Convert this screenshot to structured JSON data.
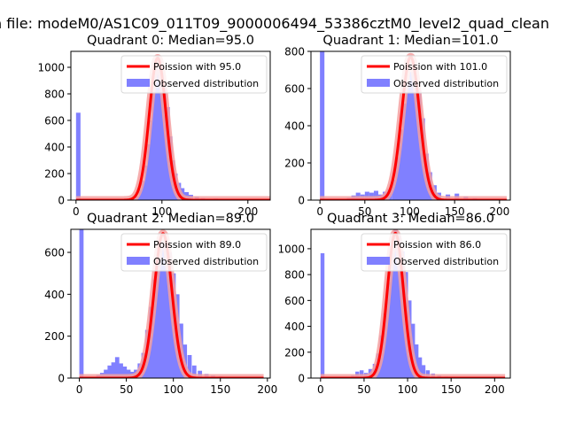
{
  "figure": {
    "suptitle": "n file: modeM0/AS1C09_011T09_9000006494_53386cztM0_level2_quad_clean"
  },
  "colors": {
    "hist": "#8080ff",
    "poisson": "#ff0000",
    "poisson_glow": "#f4a0a0",
    "axis": "#000000",
    "background": "#ffffff"
  },
  "chart_data": [
    {
      "type": "bar",
      "title": "Quadrant 0: Median=95.0",
      "median": 95.0,
      "xlim": [
        -6,
        226
      ],
      "ylim": [
        0,
        1120
      ],
      "xticks": [
        0,
        100,
        200
      ],
      "xtick_labels": [
        "0",
        "100",
        "200"
      ],
      "yticks": [
        0,
        200,
        400,
        600,
        800,
        1000
      ],
      "ytick_labels": [
        "0",
        "200",
        "400",
        "600",
        "800",
        "1000"
      ],
      "legend": {
        "position": "top-right",
        "entries": [
          "Poission with 95.0",
          "Observed distribution"
        ]
      },
      "series": [
        {
          "name": "Observed distribution",
          "kind": "histogram",
          "bin_width": 5.2,
          "bins": [
            [
              0,
              658
            ],
            [
              61,
              3
            ],
            [
              65,
              8
            ],
            [
              69,
              30
            ],
            [
              73,
              80
            ],
            [
              76,
              145
            ],
            [
              80,
              260
            ],
            [
              83,
              420
            ],
            [
              86,
              600
            ],
            [
              88,
              810
            ],
            [
              91,
              1010
            ],
            [
              94,
              990
            ],
            [
              97,
              960
            ],
            [
              100,
              860
            ],
            [
              104,
              700
            ],
            [
              107,
              480
            ],
            [
              110,
              300
            ],
            [
              113,
              200
            ],
            [
              117,
              130
            ],
            [
              121,
              90
            ],
            [
              126,
              60
            ],
            [
              131,
              40
            ],
            [
              138,
              25
            ],
            [
              145,
              15
            ],
            [
              152,
              10
            ],
            [
              160,
              12
            ],
            [
              168,
              8
            ],
            [
              176,
              5
            ],
            [
              185,
              4
            ],
            [
              195,
              3
            ],
            [
              205,
              2
            ]
          ]
        },
        {
          "name": "Poission with 95.0",
          "kind": "curve",
          "mean": 95.0,
          "peak": 1070,
          "xrange": [
            0,
            230
          ]
        }
      ]
    },
    {
      "type": "bar",
      "title": "Quadrant 1: Median=101.0",
      "median": 101.0,
      "xlim": [
        -10,
        212
      ],
      "ylim": [
        0,
        800
      ],
      "xticks": [
        0,
        50,
        100,
        150,
        200
      ],
      "xtick_labels": [
        "0",
        "50",
        "100",
        "150",
        "200"
      ],
      "yticks": [
        0,
        200,
        400,
        600,
        800
      ],
      "ytick_labels": [
        "0",
        "200",
        "400",
        "600",
        "800"
      ],
      "legend": {
        "position": "top-right",
        "entries": [
          "Poission with 101.0",
          "Observed distribution"
        ]
      },
      "series": [
        {
          "name": "Observed distribution",
          "kind": "histogram",
          "bin_width": 5.0,
          "bins": [
            [
              0,
              800
            ],
            [
              25,
              5
            ],
            [
              30,
              12
            ],
            [
              35,
              25
            ],
            [
              40,
              40
            ],
            [
              45,
              30
            ],
            [
              50,
              45
            ],
            [
              55,
              40
            ],
            [
              60,
              50
            ],
            [
              65,
              30
            ],
            [
              70,
              45
            ],
            [
              75,
              60
            ],
            [
              80,
              110
            ],
            [
              84,
              230
            ],
            [
              88,
              380
            ],
            [
              92,
              520
            ],
            [
              96,
              640
            ],
            [
              100,
              690
            ],
            [
              104,
              640
            ],
            [
              108,
              590
            ],
            [
              112,
              440
            ],
            [
              116,
              250
            ],
            [
              120,
              150
            ],
            [
              125,
              80
            ],
            [
              130,
              40
            ],
            [
              140,
              30
            ],
            [
              150,
              35
            ],
            [
              160,
              20
            ],
            [
              170,
              10
            ],
            [
              180,
              6
            ],
            [
              190,
              4
            ]
          ]
        },
        {
          "name": "Poission with 101.0",
          "kind": "curve",
          "mean": 101.0,
          "peak": 770,
          "xrange": [
            0,
            208
          ]
        }
      ]
    },
    {
      "type": "bar",
      "title": "Quadrant 2: Median=89.0",
      "median": 89.0,
      "xlim": [
        -9,
        203
      ],
      "ylim": [
        0,
        710
      ],
      "xticks": [
        0,
        50,
        100,
        150,
        200
      ],
      "xtick_labels": [
        "0",
        "50",
        "100",
        "150",
        "200"
      ],
      "yticks": [
        0,
        200,
        400,
        600
      ],
      "ytick_labels": [
        "0",
        "200",
        "400",
        "600"
      ],
      "legend": {
        "position": "top-right",
        "entries": [
          "Poission with 89.0",
          "Observed distribution"
        ]
      },
      "series": [
        {
          "name": "Observed distribution",
          "kind": "histogram",
          "bin_width": 4.5,
          "bins": [
            [
              0,
              710
            ],
            [
              10,
              5
            ],
            [
              18,
              15
            ],
            [
              22,
              25
            ],
            [
              26,
              40
            ],
            [
              30,
              60
            ],
            [
              34,
              75
            ],
            [
              38,
              100
            ],
            [
              42,
              70
            ],
            [
              46,
              55
            ],
            [
              50,
              40
            ],
            [
              54,
              30
            ],
            [
              58,
              40
            ],
            [
              62,
              70
            ],
            [
              66,
              120
            ],
            [
              70,
              230
            ],
            [
              74,
              340
            ],
            [
              78,
              470
            ],
            [
              82,
              580
            ],
            [
              86,
              650
            ],
            [
              90,
              640
            ],
            [
              94,
              600
            ],
            [
              98,
              500
            ],
            [
              102,
              400
            ],
            [
              106,
              260
            ],
            [
              110,
              160
            ],
            [
              115,
              110
            ],
            [
              120,
              60
            ],
            [
              126,
              35
            ],
            [
              133,
              20
            ],
            [
              140,
              12
            ],
            [
              148,
              8
            ],
            [
              158,
              5
            ],
            [
              170,
              3
            ],
            [
              182,
              2
            ]
          ]
        },
        {
          "name": "Poission with 89.0",
          "kind": "curve",
          "mean": 89.0,
          "peak": 690,
          "xrange": [
            0,
            196
          ]
        }
      ]
    },
    {
      "type": "bar",
      "title": "Quadrant 3: Median=86.0",
      "median": 86.0,
      "xlim": [
        -11,
        218
      ],
      "ylim": [
        0,
        1150
      ],
      "xticks": [
        0,
        50,
        100,
        150,
        200
      ],
      "xtick_labels": [
        "0",
        "50",
        "100",
        "150",
        "200"
      ],
      "yticks": [
        0,
        200,
        400,
        600,
        800,
        1000
      ],
      "ytick_labels": [
        "0",
        "200",
        "400",
        "600",
        "800",
        "1000"
      ],
      "legend": {
        "position": "top-right",
        "entries": [
          "Poission with 86.0",
          "Observed distribution"
        ]
      },
      "series": [
        {
          "name": "Observed distribution",
          "kind": "histogram",
          "bin_width": 4.5,
          "bins": [
            [
              0,
              965
            ],
            [
              30,
              10
            ],
            [
              35,
              20
            ],
            [
              40,
              50
            ],
            [
              45,
              60
            ],
            [
              50,
              40
            ],
            [
              55,
              70
            ],
            [
              60,
              110
            ],
            [
              64,
              190
            ],
            [
              68,
              330
            ],
            [
              72,
              500
            ],
            [
              76,
              740
            ],
            [
              80,
              970
            ],
            [
              84,
              1150
            ],
            [
              88,
              1100
            ],
            [
              92,
              980
            ],
            [
              96,
              820
            ],
            [
              100,
              600
            ],
            [
              104,
              420
            ],
            [
              108,
              260
            ],
            [
              112,
              160
            ],
            [
              116,
              100
            ],
            [
              121,
              60
            ],
            [
              127,
              35
            ],
            [
              134,
              20
            ],
            [
              142,
              12
            ],
            [
              152,
              8
            ],
            [
              165,
              5
            ],
            [
              180,
              3
            ]
          ]
        },
        {
          "name": "Poission with 86.0",
          "kind": "curve",
          "mean": 86.0,
          "peak": 1120,
          "xrange": [
            0,
            212
          ]
        }
      ]
    }
  ]
}
